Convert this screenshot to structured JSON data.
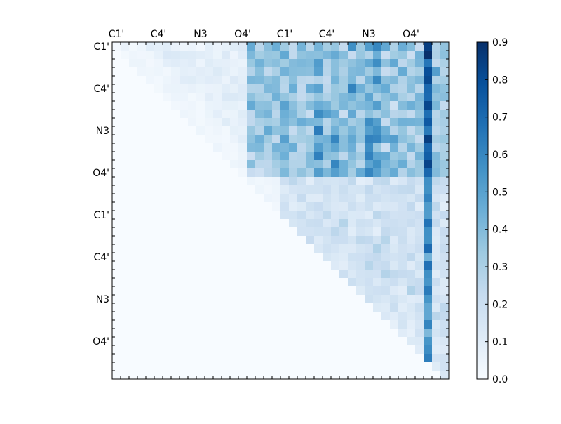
{
  "chart_data": {
    "type": "heatmap",
    "n": 40,
    "x_tick_labels": [
      "C1'",
      "C4'",
      "N3",
      "O4'",
      "C1'",
      "C4'",
      "N3",
      "O4'"
    ],
    "y_tick_labels": [
      "C1'",
      "C4'",
      "N3",
      "O4'",
      "C1'",
      "C4'",
      "N3",
      "O4'"
    ],
    "tick_label_indices": [
      0,
      5,
      10,
      15,
      20,
      25,
      30,
      35
    ],
    "colorbar": {
      "min": 0.0,
      "max": 0.9,
      "ticks": [
        "0.0",
        "0.1",
        "0.2",
        "0.3",
        "0.4",
        "0.5",
        "0.6",
        "0.7",
        "0.8",
        "0.9"
      ],
      "colormap": [
        "#f7fbff",
        "#deebf7",
        "#c6dbef",
        "#9ecae1",
        "#6baed6",
        "#4292c6",
        "#2171b5",
        "#08519c",
        "#08306b"
      ]
    },
    "matrix_shape": "upper-triangular (zero below diagonal)"
  }
}
